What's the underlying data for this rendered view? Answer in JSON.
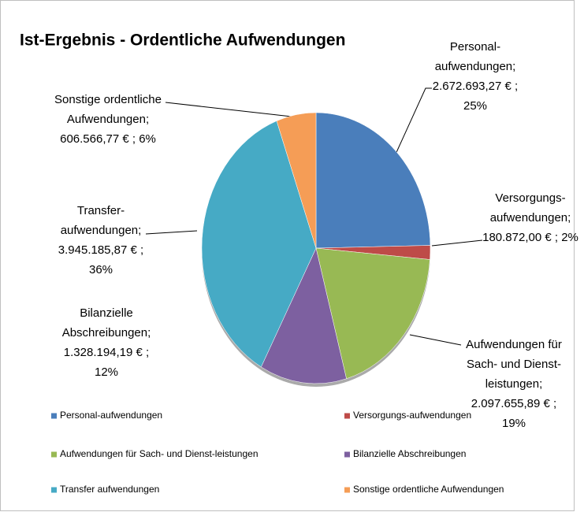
{
  "chart_data": {
    "type": "pie",
    "title": "Ist-Ergebnis - Ordentliche Aufwendungen",
    "categories": [
      "Personal-aufwendungen",
      "Versorgungs-aufwendungen",
      "Aufwendungen für Sach- und Dienst-leistungen",
      "Bilanzielle Abschreibungen",
      "Transfer aufwendungen",
      "Sonstige ordentliche Aufwendungen"
    ],
    "values": [
      2672693.27,
      180872.0,
      2097655.89,
      1328194.19,
      3945185.87,
      606566.77
    ],
    "value_labels": [
      "2.672.693,27 € ;",
      "180.872,00 € ;",
      "2.097.655,89 € ;",
      "1.328.194,19 € ;",
      "3.945.185,87 € ;",
      "606.566,77 € ;"
    ],
    "percents": [
      25,
      2,
      19,
      12,
      36,
      6
    ],
    "percent_labels": [
      "25%",
      "2%",
      "19%",
      "12%",
      "36%",
      "6%"
    ],
    "label_lines": [
      [
        "Personal-",
        "aufwendungen;"
      ],
      [
        "Versorgungs-",
        "aufwendungen;"
      ],
      [
        "Aufwendungen für",
        "Sach- und Dienst-",
        "leistungen;"
      ],
      [
        "Bilanzielle",
        "Abschreibungen;"
      ],
      [
        "Transfer-",
        "aufwendungen;"
      ],
      [
        "Sonstige ordentliche",
        "Aufwendungen;"
      ]
    ],
    "colors": [
      "#4a7ebb",
      "#be4b48",
      "#98b954",
      "#7d60a0",
      "#46aac5",
      "#f59d56"
    ],
    "legend": "bottom"
  }
}
